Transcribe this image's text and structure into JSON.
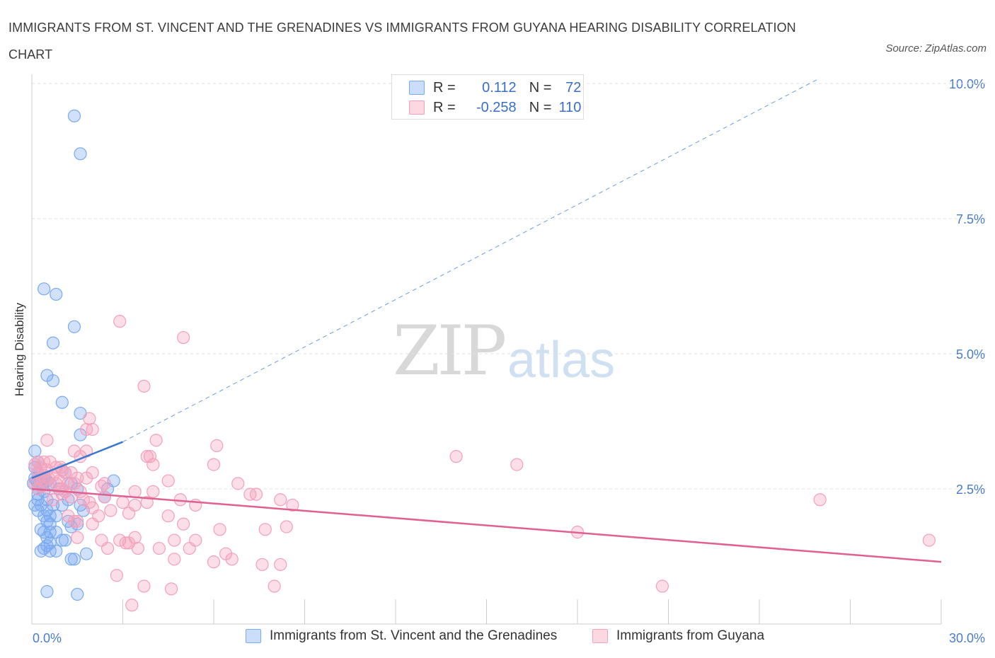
{
  "title": "IMMIGRANTS FROM ST. VINCENT AND THE GRENADINES VS IMMIGRANTS FROM GUYANA HEARING DISABILITY CORRELATION CHART",
  "source": "Source: ZipAtlas.com",
  "watermark": {
    "zip": "ZIP",
    "atlas": "atlas"
  },
  "legend": {
    "r_label": "R =",
    "n_label": "N =",
    "rows": [
      {
        "r": "0.112",
        "n": "72",
        "color": "#7aaaf0"
      },
      {
        "r": "-0.258",
        "n": "110",
        "color": "#f4a0ba"
      }
    ]
  },
  "bottom_legend": [
    "Immigrants from St. Vincent and the Grenadines",
    "Immigrants from Guyana"
  ],
  "chart_data": {
    "type": "scatter",
    "title": "IMMIGRANTS FROM ST. VINCENT AND THE GRENADINES VS IMMIGRANTS FROM GUYANA HEARING DISABILITY CORRELATION CHART",
    "xlabel": "",
    "ylabel": "Hearing Disability",
    "xlim": [
      0,
      30
    ],
    "ylim": [
      0,
      10
    ],
    "x_tick_labels": [
      "0.0%",
      "30.0%"
    ],
    "y_ticks": [
      2.5,
      5.0,
      7.5,
      10.0
    ],
    "y_tick_labels": [
      "2.5%",
      "5.0%",
      "7.5%",
      "10.0%"
    ],
    "grid": "horizontal dashed",
    "legend_position": "top-center",
    "series": [
      {
        "name": "Immigrants from St. Vincent and the Grenadines",
        "color": "#7aaaf0",
        "line_color": "#3a78d0",
        "trend": {
          "x0": 0.0,
          "y0": 2.7,
          "x1": 3.0,
          "y1": 3.37,
          "extend_to_x": 26.0,
          "extend_to_y": 10.1
        },
        "points": [
          [
            1.4,
            9.4
          ],
          [
            1.6,
            8.7
          ],
          [
            0.4,
            6.2
          ],
          [
            0.8,
            6.1
          ],
          [
            1.4,
            5.5
          ],
          [
            0.7,
            5.2
          ],
          [
            0.5,
            4.6
          ],
          [
            0.7,
            4.5
          ],
          [
            1.0,
            4.1
          ],
          [
            1.6,
            3.9
          ],
          [
            1.6,
            3.5
          ],
          [
            0.1,
            3.2
          ],
          [
            0.2,
            3.0
          ],
          [
            0.1,
            2.9
          ],
          [
            0.2,
            2.8
          ],
          [
            0.1,
            2.7
          ],
          [
            0.3,
            2.7
          ],
          [
            0.15,
            2.65
          ],
          [
            0.25,
            2.6
          ],
          [
            0.35,
            2.6
          ],
          [
            0.05,
            2.6
          ],
          [
            0.4,
            2.7
          ],
          [
            0.5,
            2.65
          ],
          [
            0.6,
            2.6
          ],
          [
            0.3,
            2.55
          ],
          [
            0.2,
            2.5
          ],
          [
            0.4,
            2.45
          ],
          [
            0.9,
            2.5
          ],
          [
            1.1,
            2.8
          ],
          [
            1.3,
            2.6
          ],
          [
            1.5,
            2.5
          ],
          [
            2.7,
            2.65
          ],
          [
            2.5,
            2.5
          ],
          [
            2.4,
            2.35
          ],
          [
            0.2,
            2.3
          ],
          [
            0.5,
            2.3
          ],
          [
            0.1,
            2.2
          ],
          [
            0.3,
            2.2
          ],
          [
            0.7,
            2.2
          ],
          [
            1.0,
            2.2
          ],
          [
            1.6,
            2.2
          ],
          [
            1.2,
            2.3
          ],
          [
            0.2,
            2.1
          ],
          [
            0.5,
            2.1
          ],
          [
            1.7,
            2.1
          ],
          [
            0.4,
            2.0
          ],
          [
            0.6,
            2.0
          ],
          [
            0.8,
            2.0
          ],
          [
            0.5,
            1.9
          ],
          [
            0.6,
            1.85
          ],
          [
            1.2,
            1.9
          ],
          [
            1.5,
            1.85
          ],
          [
            1.3,
            1.8
          ],
          [
            0.3,
            1.75
          ],
          [
            0.6,
            1.7
          ],
          [
            0.8,
            1.7
          ],
          [
            0.4,
            1.7
          ],
          [
            0.5,
            1.6
          ],
          [
            1.0,
            1.55
          ],
          [
            1.1,
            1.55
          ],
          [
            0.5,
            1.45
          ],
          [
            0.4,
            1.4
          ],
          [
            0.6,
            1.35
          ],
          [
            0.8,
            1.35
          ],
          [
            0.3,
            1.35
          ],
          [
            0.6,
            1.5
          ],
          [
            1.3,
            1.2
          ],
          [
            1.4,
            1.2
          ],
          [
            1.8,
            1.3
          ],
          [
            0.5,
            0.6
          ],
          [
            1.5,
            0.55
          ],
          [
            0.2,
            2.4
          ]
        ]
      },
      {
        "name": "Immigrants from Guyana",
        "color": "#f4a0ba",
        "line_color": "#e06090",
        "trend": {
          "x0": 0.0,
          "y0": 2.5,
          "x1": 30.0,
          "y1": 1.15
        },
        "points": [
          [
            2.9,
            5.6
          ],
          [
            5.0,
            5.3
          ],
          [
            3.7,
            4.4
          ],
          [
            1.9,
            3.8
          ],
          [
            1.8,
            3.6
          ],
          [
            2.0,
            3.6
          ],
          [
            4.1,
            3.4
          ],
          [
            0.5,
            3.4
          ],
          [
            6.1,
            3.3
          ],
          [
            1.4,
            3.2
          ],
          [
            1.8,
            3.2
          ],
          [
            1.6,
            3.1
          ],
          [
            3.8,
            3.1
          ],
          [
            3.9,
            3.1
          ],
          [
            14.0,
            3.1
          ],
          [
            16.0,
            2.95
          ],
          [
            0.2,
            3.0
          ],
          [
            0.6,
            3.0
          ],
          [
            0.8,
            2.9
          ],
          [
            0.3,
            2.9
          ],
          [
            0.5,
            2.85
          ],
          [
            1.0,
            2.85
          ],
          [
            1.1,
            2.8
          ],
          [
            1.3,
            2.8
          ],
          [
            2.0,
            2.8
          ],
          [
            4.0,
            2.95
          ],
          [
            6.0,
            2.95
          ],
          [
            0.2,
            2.8
          ],
          [
            0.4,
            2.75
          ],
          [
            0.7,
            2.75
          ],
          [
            1.5,
            2.7
          ],
          [
            1.8,
            2.7
          ],
          [
            0.9,
            2.65
          ],
          [
            1.2,
            2.6
          ],
          [
            1.4,
            2.6
          ],
          [
            4.5,
            2.65
          ],
          [
            6.8,
            2.6
          ],
          [
            0.1,
            2.6
          ],
          [
            0.3,
            2.55
          ],
          [
            0.6,
            2.5
          ],
          [
            1.0,
            2.5
          ],
          [
            1.6,
            2.45
          ],
          [
            2.3,
            2.55
          ],
          [
            3.4,
            2.45
          ],
          [
            4.0,
            2.45
          ],
          [
            7.2,
            2.4
          ],
          [
            7.4,
            2.4
          ],
          [
            8.2,
            2.3
          ],
          [
            26.0,
            2.3
          ],
          [
            1.0,
            2.4
          ],
          [
            1.3,
            2.35
          ],
          [
            1.7,
            2.3
          ],
          [
            2.4,
            2.35
          ],
          [
            3.0,
            2.25
          ],
          [
            3.8,
            2.25
          ],
          [
            4.9,
            2.3
          ],
          [
            5.4,
            2.2
          ],
          [
            8.6,
            2.2
          ],
          [
            2.0,
            2.15
          ],
          [
            3.4,
            2.2
          ],
          [
            2.6,
            2.1
          ],
          [
            3.2,
            2.05
          ],
          [
            1.2,
            2.0
          ],
          [
            2.2,
            2.0
          ],
          [
            4.5,
            2.0
          ],
          [
            5.0,
            1.85
          ],
          [
            1.5,
            1.9
          ],
          [
            2.0,
            1.85
          ],
          [
            6.2,
            1.75
          ],
          [
            7.7,
            1.75
          ],
          [
            8.4,
            1.8
          ],
          [
            18.0,
            1.7
          ],
          [
            1.5,
            1.6
          ],
          [
            2.3,
            1.55
          ],
          [
            3.4,
            1.6
          ],
          [
            2.9,
            1.55
          ],
          [
            3.1,
            1.5
          ],
          [
            3.2,
            1.5
          ],
          [
            4.7,
            1.55
          ],
          [
            5.4,
            1.55
          ],
          [
            2.5,
            1.4
          ],
          [
            3.5,
            1.4
          ],
          [
            4.2,
            1.4
          ],
          [
            5.2,
            1.4
          ],
          [
            6.4,
            1.3
          ],
          [
            6.6,
            1.2
          ],
          [
            6.0,
            1.15
          ],
          [
            4.7,
            1.2
          ],
          [
            7.6,
            1.1
          ],
          [
            8.2,
            1.1
          ],
          [
            29.6,
            1.55
          ],
          [
            2.8,
            0.9
          ],
          [
            3.7,
            0.7
          ],
          [
            4.6,
            0.65
          ],
          [
            8.0,
            0.7
          ],
          [
            20.8,
            0.7
          ],
          [
            3.3,
            0.35
          ],
          [
            0.1,
            2.95
          ],
          [
            0.4,
            3.0
          ],
          [
            0.25,
            2.7
          ],
          [
            0.8,
            2.6
          ],
          [
            1.9,
            2.25
          ],
          [
            2.4,
            2.6
          ],
          [
            1.1,
            2.45
          ],
          [
            0.7,
            2.3
          ],
          [
            1.4,
            1.9
          ],
          [
            0.2,
            2.5
          ],
          [
            0.35,
            2.65
          ],
          [
            0.55,
            2.7
          ],
          [
            0.95,
            2.9
          ]
        ]
      }
    ]
  }
}
